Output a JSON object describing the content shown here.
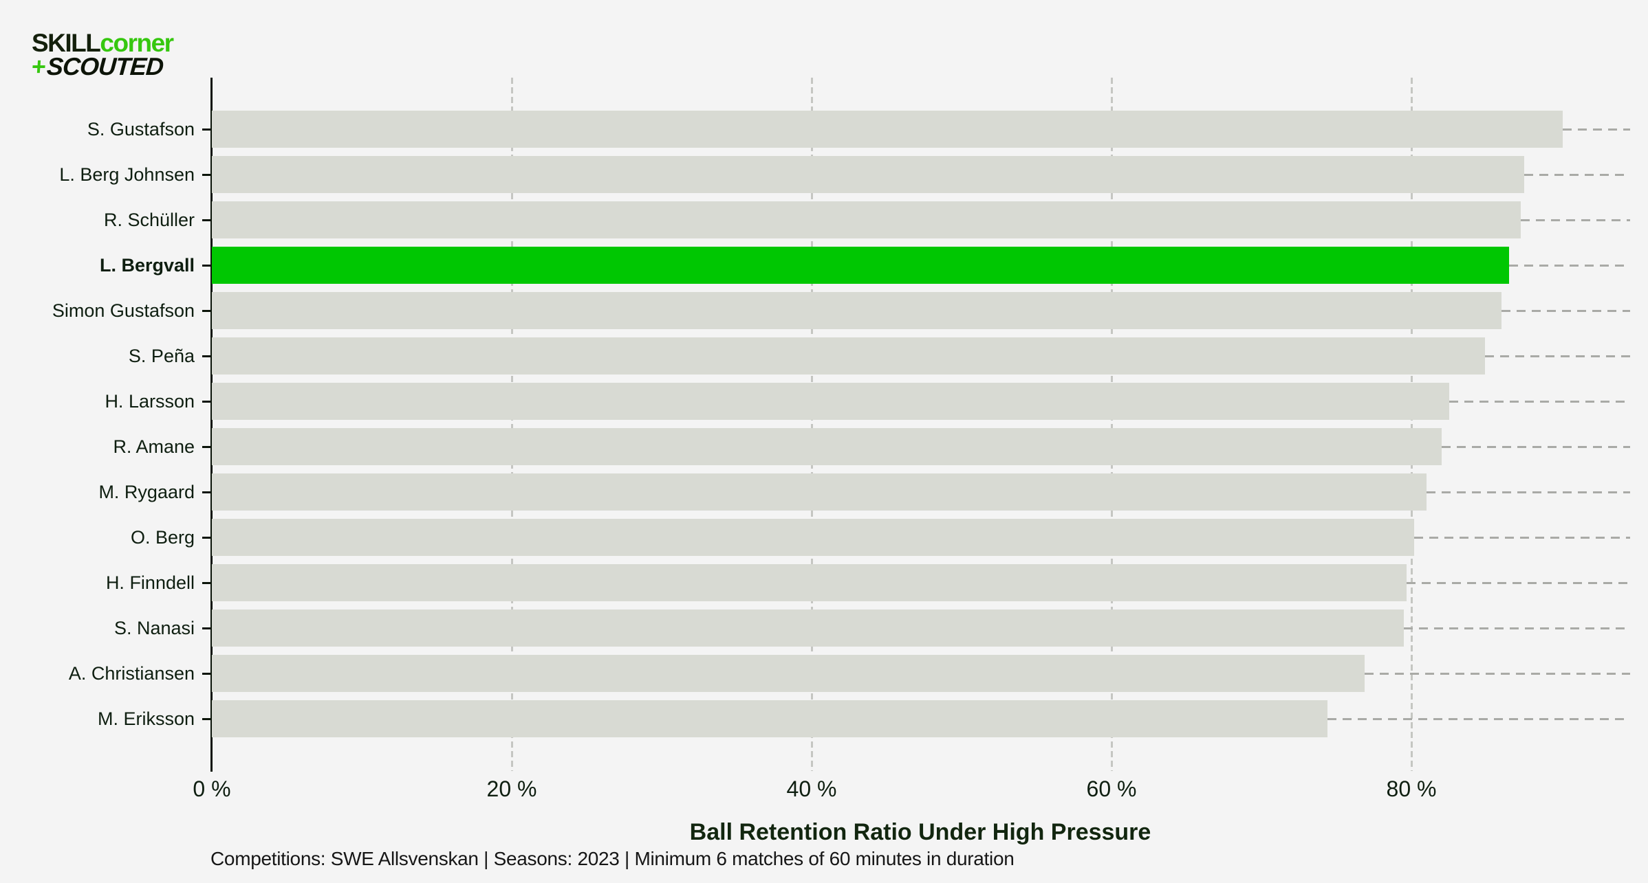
{
  "logo": {
    "skill": "SKILL",
    "corner": "corner",
    "plus": "+",
    "scouted": "SCOUTED"
  },
  "colors": {
    "background": "#f4f4f4",
    "bar_default": "#d8dad3",
    "bar_highlight": "#00c702",
    "logo_green": "#36c70f",
    "logo_dark": "#14200c",
    "axis": "#0c150a",
    "gridline": "#c5c6c2",
    "leader_line": "#a9aaa6",
    "text_dark": "#0e1e10"
  },
  "chart_data": {
    "type": "bar",
    "orientation": "horizontal",
    "title": "Ball Retention Ratio Under High Pressure",
    "subtitle": "Competitions: SWE Allsvenskan | Seasons: 2023 | Minimum 6 matches of 60 minutes in duration",
    "categories": [
      "S. Gustafson",
      "L. Berg Johnsen",
      "R. Schüller",
      "L. Bergvall",
      "Simon Gustafson",
      "S. Peña",
      "H. Larsson",
      "R. Amane",
      "M. Rygaard",
      "O. Berg",
      "H. Finndell",
      "S. Nanasi",
      "A. Christiansen",
      "M. Eriksson"
    ],
    "values": [
      90.1,
      87.5,
      87.3,
      86.5,
      86.0,
      84.9,
      82.5,
      82.0,
      81.0,
      80.2,
      79.7,
      79.5,
      76.9,
      74.4
    ],
    "unit": "%",
    "highlighted_category": "L. Bergvall",
    "highlight_index": 3,
    "x_ticks": [
      {
        "value": 0,
        "label": "0 %"
      },
      {
        "value": 20,
        "label": "20 %"
      },
      {
        "value": 40,
        "label": "40 %"
      },
      {
        "value": 60,
        "label": "60 %"
      },
      {
        "value": 80,
        "label": "80 %"
      }
    ],
    "xlim": [
      0,
      95.8
    ],
    "xlabel": "Ball Retention Ratio Under High Pressure",
    "ylabel": "",
    "grid": "vertical-dashed",
    "legend": null,
    "bar_end_leader_lines": "dashed, from bar end to right edge"
  }
}
